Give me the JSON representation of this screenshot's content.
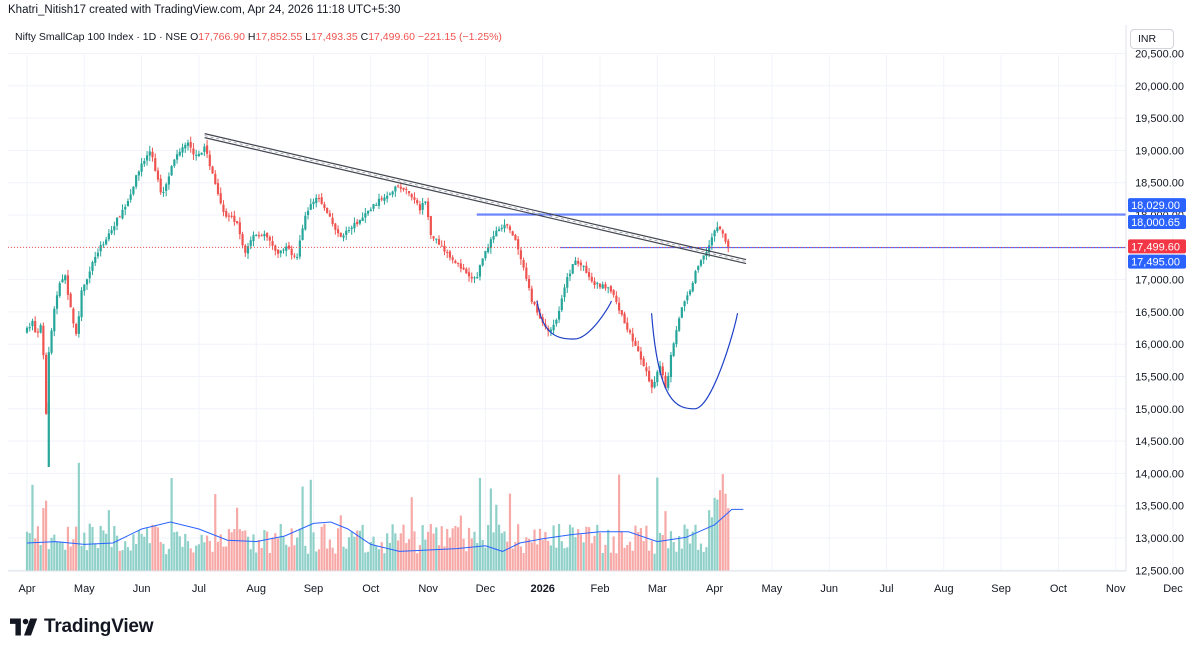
{
  "header": {
    "credit": "Khatri_Nitish17 created with TradingView.com, Apr 24, 2026 11:18 UTC+5:30"
  },
  "legend": {
    "symbol": "Nifty SmallCap 100 Index · 1D · NSE",
    "o_label": "O",
    "o_value": "17,766.90",
    "h_label": "H",
    "h_value": "17,852.55",
    "l_label": "L",
    "l_value": "17,493.35",
    "c_label": "C",
    "c_value": "17,499.60",
    "change": "−221.15 (−1.25%)"
  },
  "currency": "INR",
  "footer": {
    "brand": "TradingView"
  },
  "colors": {
    "up": "#26a69a",
    "down": "#ef5350",
    "vol_up": "#8fd0c9",
    "vol_down": "#f7a9a7",
    "ma": "#2962ff",
    "line_blue": "#3d5afe",
    "level_fill": "#9db3ff",
    "badge_blue": "#2962ff",
    "badge_red": "#f23645",
    "trend_dark": "#434651",
    "arc": "#1e40c8"
  },
  "chart_data": {
    "type": "candlestick",
    "title": "Nifty SmallCap 100 Index · 1D · NSE",
    "y_axis": {
      "ticks": [
        12500,
        13000,
        13500,
        14000,
        14500,
        15000,
        15500,
        16000,
        16500,
        17000,
        17500,
        18000,
        18500,
        19000,
        19500,
        20000,
        20500
      ],
      "tick_labels": [
        "12,500.00",
        "13,000.00",
        "13,500.00",
        "14,000.00",
        "14,500.00",
        "15,000.00",
        "15,500.00",
        "16,000.00",
        "16,500.00",
        "17,000.00",
        "17,500.00",
        "18,000.00",
        "18,500.00",
        "19,000.00",
        "19,500.00",
        "20,000.00",
        "20,500.00"
      ],
      "range": [
        12300,
        20600
      ]
    },
    "x_axis": {
      "labels": [
        "Apr",
        "May",
        "Jun",
        "Jul",
        "Aug",
        "Sep",
        "Oct",
        "Nov",
        "Dec",
        "2026",
        "Feb",
        "Mar",
        "Apr",
        "May",
        "Jun",
        "Jul",
        "Aug",
        "Sep",
        "Oct",
        "Nov",
        "Dec"
      ],
      "month_index": [
        0,
        1,
        2,
        3,
        4,
        5,
        6,
        7,
        8,
        9,
        10,
        11,
        12,
        13,
        14,
        15,
        16,
        17,
        18,
        19,
        20
      ]
    },
    "price_path": [
      [
        0,
        16200
      ],
      [
        0.1,
        16250
      ],
      [
        0.15,
        16400
      ],
      [
        0.2,
        16100
      ],
      [
        0.3,
        16300
      ],
      [
        0.36,
        15400
      ],
      [
        0.38,
        14900
      ],
      [
        0.42,
        15800
      ],
      [
        0.5,
        16400
      ],
      [
        0.6,
        16900
      ],
      [
        0.7,
        17100
      ],
      [
        0.8,
        16600
      ],
      [
        0.9,
        16100
      ],
      [
        1.0,
        16800
      ],
      [
        1.2,
        17300
      ],
      [
        1.4,
        17600
      ],
      [
        1.6,
        17900
      ],
      [
        1.8,
        18200
      ],
      [
        2.0,
        18700
      ],
      [
        2.2,
        19000
      ],
      [
        2.4,
        18300
      ],
      [
        2.55,
        18700
      ],
      [
        2.7,
        19000
      ],
      [
        2.85,
        19100
      ],
      [
        3.0,
        18900
      ],
      [
        3.15,
        19050
      ],
      [
        3.3,
        18600
      ],
      [
        3.5,
        18000
      ],
      [
        3.7,
        17900
      ],
      [
        3.85,
        17400
      ],
      [
        4.0,
        17700
      ],
      [
        4.2,
        17700
      ],
      [
        4.4,
        17400
      ],
      [
        4.6,
        17500
      ],
      [
        4.75,
        17300
      ],
      [
        4.9,
        18000
      ],
      [
        5.1,
        18300
      ],
      [
        5.3,
        18000
      ],
      [
        5.5,
        17650
      ],
      [
        5.7,
        17800
      ],
      [
        5.9,
        17950
      ],
      [
        6.1,
        18150
      ],
      [
        6.3,
        18300
      ],
      [
        6.5,
        18450
      ],
      [
        6.7,
        18350
      ],
      [
        6.9,
        18100
      ],
      [
        7.0,
        18200
      ],
      [
        7.1,
        17700
      ],
      [
        7.3,
        17500
      ],
      [
        7.5,
        17300
      ],
      [
        7.7,
        17100
      ],
      [
        7.8,
        17000
      ],
      [
        7.9,
        17050
      ],
      [
        8.0,
        17350
      ],
      [
        8.2,
        17700
      ],
      [
        8.4,
        17850
      ],
      [
        8.55,
        17650
      ],
      [
        8.7,
        17200
      ],
      [
        8.85,
        16700
      ],
      [
        9.0,
        16400
      ],
      [
        9.15,
        16200
      ],
      [
        9.3,
        16400
      ],
      [
        9.45,
        16950
      ],
      [
        9.6,
        17300
      ],
      [
        9.75,
        17200
      ],
      [
        9.9,
        16950
      ],
      [
        10.05,
        16900
      ],
      [
        10.2,
        16900
      ],
      [
        10.35,
        16600
      ],
      [
        10.5,
        16300
      ],
      [
        10.65,
        16000
      ],
      [
        10.8,
        15700
      ],
      [
        10.95,
        15300
      ],
      [
        11.1,
        15700
      ],
      [
        11.2,
        15300
      ],
      [
        11.3,
        15900
      ],
      [
        11.45,
        16500
      ],
      [
        11.6,
        16800
      ],
      [
        11.75,
        17200
      ],
      [
        11.9,
        17450
      ],
      [
        12.0,
        17650
      ],
      [
        12.1,
        17830
      ],
      [
        12.2,
        17700
      ],
      [
        12.28,
        17500
      ]
    ],
    "last_close": 17499.6,
    "levels": {
      "upper_1": 18029.0,
      "upper_2": 18000.65,
      "lower": 17495.0
    },
    "level_labels": {
      "upper_1": "18,029.00",
      "upper_2": "18,000.65",
      "current": "17,499.60",
      "lower": "17,495.00"
    },
    "trendline": {
      "x": [
        3.1,
        12.55
      ],
      "y": [
        19260,
        17310
      ]
    },
    "cup_arcs": [
      {
        "x": [
          8.9,
          10.2
        ],
        "y_top": 16670,
        "y_bottom": 16080
      },
      {
        "x": [
          10.9,
          12.4
        ],
        "y_top": 16480,
        "y_bottom": 15000
      }
    ],
    "volume_ma": [
      [
        0,
        0.2
      ],
      [
        0.5,
        0.21
      ],
      [
        1.0,
        0.19
      ],
      [
        1.5,
        0.2
      ],
      [
        2.0,
        0.3
      ],
      [
        2.5,
        0.35
      ],
      [
        3.0,
        0.3
      ],
      [
        3.5,
        0.22
      ],
      [
        4.0,
        0.21
      ],
      [
        4.5,
        0.25
      ],
      [
        5.0,
        0.34
      ],
      [
        5.3,
        0.35
      ],
      [
        5.6,
        0.3
      ],
      [
        6.0,
        0.19
      ],
      [
        6.5,
        0.14
      ],
      [
        7.0,
        0.15
      ],
      [
        7.5,
        0.16
      ],
      [
        8.0,
        0.18
      ],
      [
        8.3,
        0.14
      ],
      [
        8.6,
        0.2
      ],
      [
        9.0,
        0.23
      ],
      [
        9.5,
        0.26
      ],
      [
        10.0,
        0.28
      ],
      [
        10.5,
        0.28
      ],
      [
        11.0,
        0.21
      ],
      [
        11.5,
        0.24
      ],
      [
        12.0,
        0.33
      ],
      [
        12.3,
        0.44
      ],
      [
        12.5,
        0.44
      ]
    ]
  }
}
